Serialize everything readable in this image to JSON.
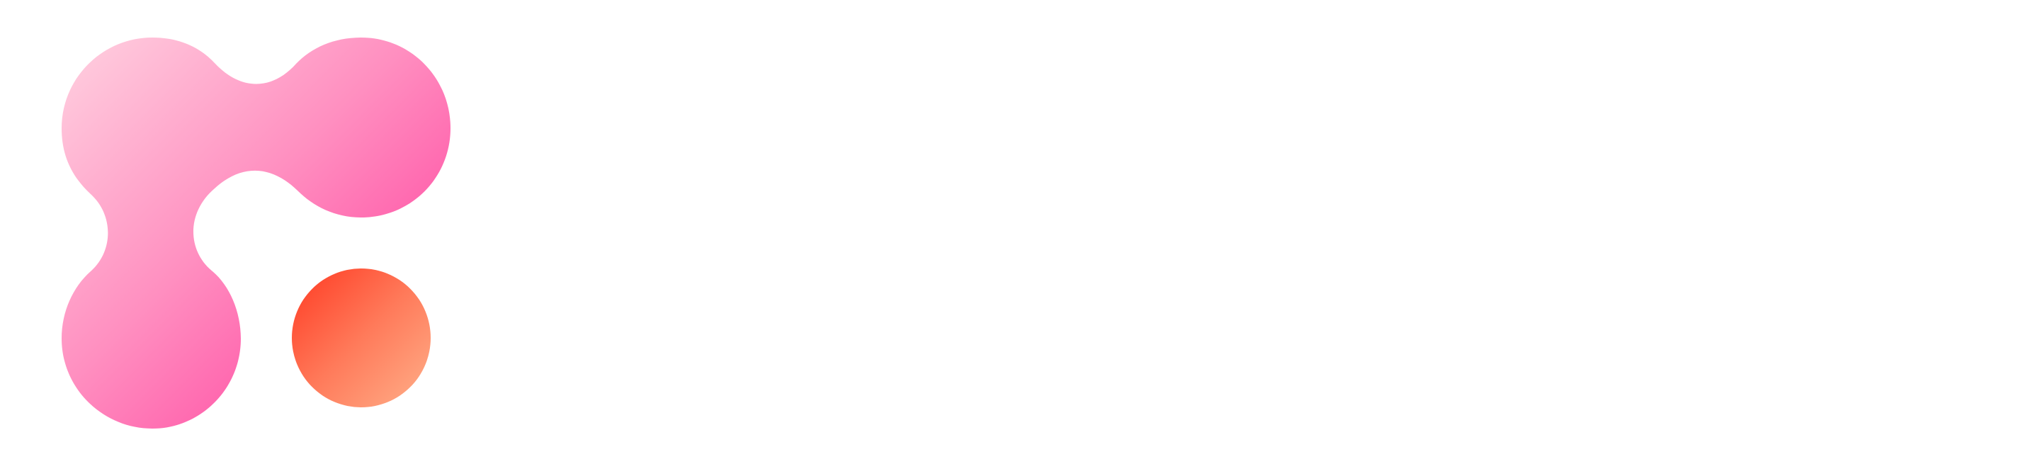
{
  "logo": {
    "icon_name": "brand-logo-icon",
    "shape_gradient": [
      "#ffd1e0",
      "#ff8fc0",
      "#ff2e96"
    ],
    "dot_gradient": [
      "#ff3a22",
      "#ff7a5a",
      "#ffb08a"
    ]
  },
  "background_color": "#ffffff"
}
